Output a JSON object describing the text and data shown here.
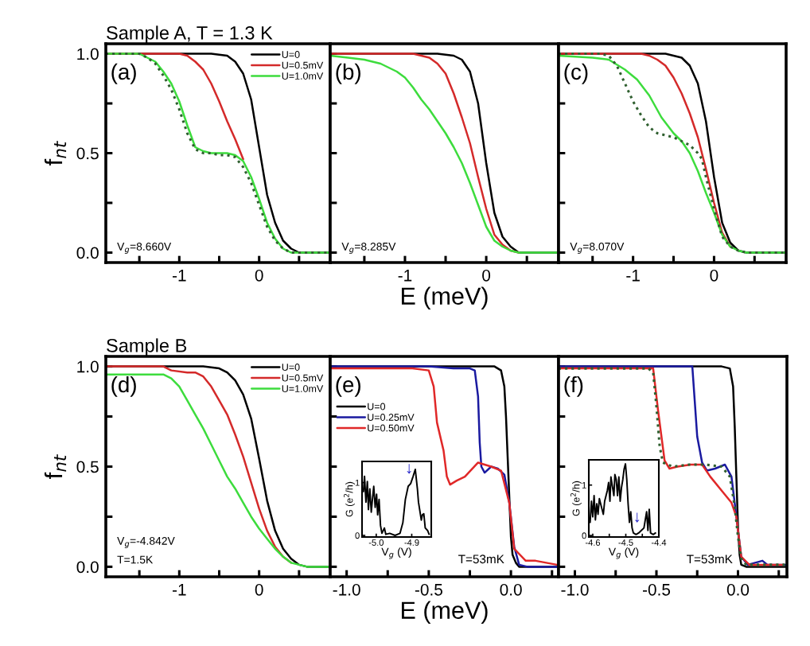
{
  "chart_data": [
    {
      "type": "line",
      "title": "Sample A, T = 1.3 K",
      "ylabel": "f$_{nt}$",
      "xlim": [
        -1.92,
        0.89
      ],
      "xticks": [
        {
          "value": -1.5,
          "label": null
        },
        -1,
        {
          "value": -0.5,
          "label": null
        },
        0,
        {
          "value": 0.5,
          "label": null
        }
      ],
      "ylim": [
        -0.05,
        1.05
      ],
      "yticks": [
        {
          "value": 0,
          "label": "0.0"
        },
        {
          "value": 0.25,
          "label": null
        },
        0.5,
        {
          "value": 0.75,
          "label": null
        },
        {
          "value": 1,
          "label": "1.0"
        }
      ],
      "legend": "top right",
      "annotations": [
        "(a)",
        "V$_{g}$=8.660V"
      ],
      "series": [
        {
          "name": "U=0",
          "color": "#000000",
          "x": [
            -1.92,
            -0.6,
            -0.4,
            -0.3,
            -0.2,
            -0.1,
            0,
            0.1,
            0.2,
            0.3,
            0.4,
            0.5,
            0.89
          ],
          "values": [
            1,
            1,
            0.99,
            0.96,
            0.9,
            0.77,
            0.53,
            0.29,
            0.15,
            0.06,
            0.02,
            0,
            0
          ]
        },
        {
          "name": "U=0.5mV",
          "color": "#d42a2a",
          "x": [
            -1.92,
            -1.0,
            -0.9,
            -0.8,
            -0.7,
            -0.6,
            -0.5,
            -0.4,
            -0.3,
            -0.2
          ],
          "values": [
            1,
            1,
            0.99,
            0.96,
            0.92,
            0.85,
            0.76,
            0.66,
            0.57,
            0.47
          ]
        },
        {
          "name": "U=1.0mV",
          "color": "#3ddc3d",
          "x": [
            -1.92,
            -1.5,
            -1.4,
            -1.3,
            -1.2,
            -1.1,
            -1.0,
            -0.9,
            -0.8,
            -0.7,
            -0.6,
            -0.5,
            -0.4,
            -0.3,
            -0.2,
            -0.1,
            0,
            0.1,
            0.2,
            0.3,
            0.4,
            0.89
          ],
          "values": [
            1,
            1,
            0.98,
            0.96,
            0.91,
            0.85,
            0.76,
            0.64,
            0.53,
            0.51,
            0.5,
            0.5,
            0.5,
            0.49,
            0.46,
            0.38,
            0.27,
            0.15,
            0.07,
            0.02,
            0,
            0
          ]
        },
        {
          "color": "#2f5f2f",
          "line_style": "dotted",
          "x": [
            -1.92,
            -1.5,
            -1.4,
            -1.3,
            -1.2,
            -1.1,
            -1.0,
            -0.9,
            -0.8,
            -0.7,
            -0.6,
            -0.5,
            -0.4,
            -0.3,
            -0.2,
            -0.1,
            0,
            0.1,
            0.2,
            0.3,
            0.4,
            0.89
          ],
          "values": [
            1,
            1,
            0.98,
            0.95,
            0.89,
            0.82,
            0.72,
            0.6,
            0.52,
            0.5,
            0.5,
            0.49,
            0.49,
            0.48,
            0.43,
            0.35,
            0.24,
            0.13,
            0.06,
            0.02,
            0,
            0
          ]
        }
      ]
    },
    {
      "type": "line",
      "xlabel": "E (meV)",
      "xlim": [
        -1.92,
        0.89
      ],
      "xticks": [
        {
          "value": -1.5,
          "label": null
        },
        -1,
        {
          "value": -0.5,
          "label": null
        },
        0,
        {
          "value": 0.5,
          "label": null
        }
      ],
      "ylim": [
        -0.05,
        1.05
      ],
      "yticks": [
        0.0,
        {
          "value": 0.25,
          "label": null
        },
        0.5,
        {
          "value": 0.75,
          "label": null
        },
        1.0
      ],
      "tick_labels": "x",
      "annotations": [
        "(b)",
        "V$_{g}$=8.285V"
      ],
      "series": [
        {
          "color": "#000000",
          "x": [
            -1.92,
            -0.6,
            -0.4,
            -0.3,
            -0.2,
            -0.1,
            0,
            0.1,
            0.2,
            0.3,
            0.4,
            0.89
          ],
          "values": [
            1,
            1,
            0.99,
            0.97,
            0.91,
            0.75,
            0.45,
            0.2,
            0.08,
            0.03,
            0,
            0
          ]
        },
        {
          "color": "#d42a2a",
          "x": [
            -1.92,
            -0.9,
            -0.8,
            -0.7,
            -0.6,
            -0.5,
            -0.4,
            -0.3,
            -0.2,
            -0.1,
            0,
            0.1,
            0.2,
            0.3,
            0.4
          ],
          "values": [
            1,
            1,
            0.99,
            0.98,
            0.95,
            0.9,
            0.8,
            0.68,
            0.55,
            0.38,
            0.22,
            0.09,
            0.04,
            0.01,
            0
          ]
        },
        {
          "color": "#3ddc3d",
          "x": [
            -1.92,
            -1.7,
            -1.5,
            -1.3,
            -1.1,
            -1.0,
            -0.9,
            -0.8,
            -0.7,
            -0.6,
            -0.5,
            -0.4,
            -0.3,
            -0.2,
            -0.1,
            0,
            0.1,
            0.2,
            0.3,
            0.4,
            0.89
          ],
          "values": [
            0.99,
            0.98,
            0.97,
            0.95,
            0.91,
            0.88,
            0.83,
            0.77,
            0.72,
            0.66,
            0.6,
            0.53,
            0.45,
            0.35,
            0.24,
            0.13,
            0.06,
            0.03,
            0.01,
            0,
            0
          ]
        }
      ]
    },
    {
      "type": "line",
      "xlim": [
        -1.92,
        0.89
      ],
      "xticks": [
        {
          "value": -1.5,
          "label": null
        },
        -1,
        {
          "value": -0.5,
          "label": null
        },
        0,
        {
          "value": 0.5,
          "label": null
        }
      ],
      "ylim": [
        -0.05,
        1.05
      ],
      "yticks": [
        0.0,
        {
          "value": 0.25,
          "label": null
        },
        0.5,
        {
          "value": 0.75,
          "label": null
        },
        1.0
      ],
      "tick_labels": "x",
      "annotations": [
        "(c)",
        "V$_{g}$=8.070V"
      ],
      "series": [
        {
          "color": "#000000",
          "x": [
            -1.92,
            -0.6,
            -0.4,
            -0.3,
            -0.2,
            -0.1,
            0,
            0.1,
            0.2,
            0.3,
            0.4,
            0.89
          ],
          "values": [
            1,
            1,
            0.98,
            0.94,
            0.85,
            0.66,
            0.38,
            0.15,
            0.05,
            0.01,
            0,
            0
          ]
        },
        {
          "color": "#d42a2a",
          "x": [
            -1.92,
            -0.9,
            -0.8,
            -0.7,
            -0.6,
            -0.5,
            -0.4,
            -0.3,
            -0.2,
            -0.1,
            0,
            0.1,
            0.2
          ],
          "values": [
            1,
            1,
            0.99,
            0.97,
            0.94,
            0.88,
            0.8,
            0.7,
            0.58,
            0.42,
            0.25,
            0.1,
            0.03
          ]
        },
        {
          "color": "#3ddc3d",
          "x": [
            -1.92,
            -1.5,
            -1.3,
            -1.1,
            -0.95,
            -0.8,
            -0.65,
            -0.5,
            -0.4,
            -0.3,
            -0.2,
            -0.1,
            0,
            0.1,
            0.2,
            0.3,
            0.4,
            0.89
          ],
          "values": [
            0.99,
            0.98,
            0.97,
            0.92,
            0.87,
            0.79,
            0.68,
            0.6,
            0.56,
            0.5,
            0.41,
            0.3,
            0.2,
            0.09,
            0.03,
            0.01,
            0,
            0
          ]
        },
        {
          "color": "#2f5f2f",
          "line_style": "dotted",
          "x": [
            -1.92,
            -1.4,
            -1.3,
            -1.2,
            -1.1,
            -1.0,
            -0.9,
            -0.8,
            -0.7,
            -0.6,
            -0.5,
            -0.4,
            -0.3,
            -0.2,
            -0.15,
            -0.1,
            0,
            0.1,
            0.2,
            0.3,
            0.4,
            0.89
          ],
          "values": [
            1,
            1,
            0.99,
            0.94,
            0.85,
            0.76,
            0.69,
            0.63,
            0.6,
            0.59,
            0.58,
            0.56,
            0.54,
            0.5,
            0.47,
            0.38,
            0.22,
            0.08,
            0.03,
            0.01,
            0,
            0
          ]
        }
      ]
    },
    {
      "type": "line",
      "title": "Sample B",
      "ylabel": "f$_{nt}$",
      "xlim": [
        -1.92,
        0.89
      ],
      "xticks": [
        {
          "value": -1.5,
          "label": null
        },
        -1,
        {
          "value": -0.5,
          "label": null
        },
        0,
        {
          "value": 0.5,
          "label": null
        }
      ],
      "ylim": [
        -0.05,
        1.05
      ],
      "yticks": [
        {
          "value": 0,
          "label": "0.0"
        },
        {
          "value": 0.25,
          "label": null
        },
        0.5,
        {
          "value": 0.75,
          "label": null
        },
        {
          "value": 1,
          "label": "1.0"
        }
      ],
      "legend": "top right",
      "annotations": [
        "(d)",
        "V$_{g}$=-4.842V",
        "T=1.5K"
      ],
      "series": [
        {
          "name": "U=0",
          "color": "#000000",
          "x": [
            -1.92,
            -0.7,
            -0.5,
            -0.4,
            -0.3,
            -0.2,
            -0.1,
            0,
            0.1,
            0.2,
            0.3,
            0.4,
            0.5,
            0.6,
            0.89
          ],
          "values": [
            1,
            1,
            0.99,
            0.97,
            0.93,
            0.86,
            0.74,
            0.54,
            0.33,
            0.18,
            0.09,
            0.04,
            0.01,
            0,
            0
          ]
        },
        {
          "name": "U=0.5mV",
          "color": "#d42a2a",
          "x": [
            -1.92,
            -1.2,
            -1.1,
            -0.9,
            -0.8,
            -0.7,
            -0.6,
            -0.5,
            -0.4,
            -0.3,
            -0.2,
            -0.1,
            0,
            0.1,
            0.2,
            0.3,
            0.4
          ],
          "values": [
            1,
            1,
            0.98,
            0.97,
            0.97,
            0.95,
            0.9,
            0.83,
            0.76,
            0.66,
            0.55,
            0.42,
            0.29,
            0.18,
            0.1,
            0.05,
            0.02
          ]
        },
        {
          "name": "U=1.0mV",
          "color": "#3ddc3d",
          "x": [
            -1.92,
            -1.2,
            -1.1,
            -1.0,
            -0.9,
            -0.8,
            -0.7,
            -0.6,
            -0.5,
            -0.4,
            -0.3,
            -0.2,
            -0.1,
            0,
            0.1,
            0.2,
            0.3,
            0.4,
            0.5,
            0.6,
            0.89
          ],
          "values": [
            0.96,
            0.96,
            0.94,
            0.9,
            0.83,
            0.76,
            0.69,
            0.61,
            0.53,
            0.45,
            0.39,
            0.32,
            0.25,
            0.19,
            0.14,
            0.09,
            0.05,
            0.02,
            0.01,
            0,
            0
          ]
        }
      ]
    },
    {
      "type": "line",
      "xlabel": "E (meV)",
      "xlim": [
        -1.1,
        0.29
      ],
      "xticks": [
        {
          "value": -1,
          "label": "-1.0"
        },
        {
          "value": -0.75,
          "label": null
        },
        -0.5,
        {
          "value": -0.25,
          "label": null
        },
        {
          "value": 0,
          "label": "0.0"
        },
        {
          "value": 0.25,
          "label": null
        }
      ],
      "ylim": [
        -0.05,
        1.05
      ],
      "yticks": [
        0.0,
        {
          "value": 0.25,
          "label": null
        },
        0.5,
        {
          "value": 0.75,
          "label": null
        },
        1.0
      ],
      "tick_labels": "x",
      "legend": "left",
      "annotations": [
        "(e)",
        "T=53mK"
      ],
      "series": [
        {
          "name": "U=0",
          "color": "#000000",
          "x": [
            -1.1,
            -0.1,
            -0.06,
            -0.04,
            -0.03,
            -0.02,
            -0.01,
            0,
            0.01,
            0.03,
            0.05,
            0.29
          ],
          "values": [
            1,
            1,
            0.98,
            0.9,
            0.75,
            0.55,
            0.35,
            0.15,
            0.06,
            0.02,
            0,
            0
          ]
        },
        {
          "name": "U=0.25mV",
          "color": "#1a1aa0",
          "x": [
            -1.1,
            -0.5,
            -0.35,
            -0.25,
            -0.22,
            -0.2,
            -0.19,
            -0.18,
            -0.16,
            -0.12,
            -0.08,
            -0.04,
            -0.01,
            0.02,
            0.05,
            0.1,
            0.29
          ],
          "values": [
            1,
            1,
            0.99,
            0.99,
            0.98,
            0.85,
            0.62,
            0.5,
            0.47,
            0.5,
            0.49,
            0.46,
            0.32,
            0.1,
            0.01,
            0,
            0
          ]
        },
        {
          "name": "U=0.50mV",
          "color": "#e02828",
          "x": [
            -1.1,
            -0.6,
            -0.5,
            -0.47,
            -0.45,
            -0.41,
            -0.39,
            -0.37,
            -0.33,
            -0.28,
            -0.2,
            -0.12,
            -0.06,
            -0.01,
            0.02,
            0.09,
            0.15,
            0.28
          ],
          "values": [
            0.99,
            0.99,
            0.98,
            0.9,
            0.72,
            0.58,
            0.45,
            0.41,
            0.43,
            0.45,
            0.52,
            0.5,
            0.48,
            0.32,
            0.09,
            0.03,
            0.03,
            0.01
          ]
        }
      ]
    },
    {
      "type": "line",
      "xlabel": "V$_{g}$ (V)",
      "ylabel": "G (e$^{2}$/h)",
      "xlim": [
        -5.04,
        -4.845
      ],
      "xticks": [
        {
          "value": -5,
          "label": "-5.0"
        },
        -4.9
      ],
      "ylim": [
        -0.03,
        1.4
      ],
      "yticks": [
        0,
        1
      ],
      "annotations": [
        "↓"
      ],
      "series": [
        {
          "color": "#000000",
          "x": [
            -5.036,
            -5.033,
            -5.029,
            -5.025,
            -5.022,
            -5.018,
            -5.014,
            -5.01,
            -5.007,
            -5.003,
            -4.999,
            -4.996,
            -4.992,
            -4.988,
            -4.984,
            -4.977,
            -4.973,
            -4.962,
            -4.947,
            -4.933,
            -4.925,
            -4.918,
            -4.91,
            -4.903,
            -4.896,
            -4.89,
            -4.884,
            -4.881,
            -4.873,
            -4.87,
            -4.866,
            -4.862,
            -4.855,
            -4.851
          ],
          "values": [
            0.83,
            1.12,
            0.63,
            1.02,
            0.49,
            0.88,
            0.44,
            0.73,
            0.93,
            0.53,
            0.78,
            0.39,
            0.68,
            0.19,
            0.04,
            0.14,
            0.02,
            0.04,
            0.0,
            0.04,
            0.24,
            0.68,
            0.93,
            0.98,
            1.12,
            1.25,
            0.88,
            0.63,
            0.29,
            0.39,
            0.41,
            0.14,
            0.09,
            0.02
          ]
        }
      ]
    },
    {
      "type": "line",
      "xlim": [
        -1.1,
        0.3
      ],
      "xticks": [
        {
          "value": -1,
          "label": "-1.0"
        },
        {
          "value": -0.75,
          "label": null
        },
        -0.5,
        {
          "value": -0.25,
          "label": null
        },
        {
          "value": 0,
          "label": "0.0"
        },
        {
          "value": 0.25,
          "label": null
        }
      ],
      "ylim": [
        -0.05,
        1.05
      ],
      "yticks": [
        0.0,
        {
          "value": 0.25,
          "label": null
        },
        0.5,
        {
          "value": 0.75,
          "label": null
        },
        1.0
      ],
      "tick_labels": "x",
      "annotations": [
        "(f)",
        "T=53mK"
      ],
      "series": [
        {
          "color": "#000000",
          "x": [
            -1.1,
            -0.1,
            -0.05,
            -0.03,
            -0.02,
            -0.01,
            0,
            0.01,
            0.02,
            0.05,
            0.3
          ],
          "values": [
            1,
            1,
            0.99,
            0.9,
            0.7,
            0.45,
            0.2,
            0.06,
            0.01,
            0,
            0
          ]
        },
        {
          "color": "#1a1aa0",
          "x": [
            -1.1,
            -0.28,
            -0.25,
            -0.22,
            -0.19,
            -0.14,
            -0.08,
            -0.04,
            -0.01,
            0.02,
            0.06,
            0.15,
            0.18,
            0.3
          ],
          "values": [
            1,
            1,
            0.65,
            0.52,
            0.48,
            0.49,
            0.51,
            0.45,
            0.25,
            0.05,
            0.01,
            0.03,
            0.01,
            0.01
          ]
        },
        {
          "color": "#e02828",
          "x": [
            -1.1,
            -0.52,
            -0.49,
            -0.45,
            -0.42,
            -0.37,
            -0.29,
            -0.22,
            -0.17,
            -0.09,
            -0.04,
            -0.01,
            0.02,
            0.07,
            0.18,
            0.28
          ],
          "values": [
            0.99,
            0.99,
            0.78,
            0.53,
            0.49,
            0.5,
            0.51,
            0.51,
            0.45,
            0.37,
            0.32,
            0.25,
            0.05,
            0.01,
            0.01,
            0.01
          ]
        },
        {
          "color": "#2f5f2f",
          "line_style": "dotted",
          "x": [
            -1.1,
            -0.55,
            -0.52,
            -0.5,
            -0.48,
            -0.46,
            -0.4,
            -0.3,
            -0.2,
            -0.1,
            -0.05,
            -0.02,
            0,
            0.02,
            0.05,
            0.1,
            0.3
          ],
          "values": [
            0.99,
            0.99,
            0.97,
            0.8,
            0.6,
            0.52,
            0.5,
            0.51,
            0.51,
            0.5,
            0.45,
            0.3,
            0.15,
            0.04,
            0.01,
            0.01,
            0.01
          ]
        }
      ]
    },
    {
      "type": "line",
      "xlabel": "V$_{g}$ (V)",
      "ylabel": "G (e$^{2}$/h)",
      "xlim": [
        -4.612,
        -4.4
      ],
      "xticks": [
        -4.6,
        {
          "value": -4.55,
          "label": null
        },
        -4.5,
        {
          "value": -4.45,
          "label": null
        },
        -4.4
      ],
      "ylim": [
        -0.03,
        1.5
      ],
      "yticks": [
        0,
        1
      ],
      "annotations": [
        "↓"
      ],
      "series": [
        {
          "color": "#000000",
          "x": [
            -4.608,
            -4.604,
            -4.6,
            -4.596,
            -4.592,
            -4.588,
            -4.584,
            -4.58,
            -4.572,
            -4.568,
            -4.564,
            -4.556,
            -4.552,
            -4.548,
            -4.545,
            -4.54,
            -4.536,
            -4.533,
            -4.529,
            -4.525,
            -4.521,
            -4.517,
            -4.513,
            -4.509,
            -4.505,
            -4.501,
            -4.497,
            -4.493,
            -4.489,
            -4.485,
            -4.481,
            -4.477,
            -4.469,
            -4.461,
            -4.453,
            -4.445,
            -4.441,
            -4.437,
            -4.433,
            -4.429,
            -4.425,
            -4.417,
            -4.41
          ],
          "values": [
            0.26,
            0.68,
            0.37,
            0.79,
            0.31,
            0.63,
            0.42,
            0.73,
            0.52,
            0.42,
            0.68,
            0.89,
            1.05,
            0.68,
            1.16,
            0.95,
            0.79,
            1.21,
            1.11,
            0.79,
            1.16,
            0.68,
            0.95,
            1.11,
            1.32,
            1.42,
            1.11,
            0.63,
            0.26,
            0.47,
            0.15,
            0.05,
            0.02,
            0.05,
            0.1,
            0.15,
            0.31,
            0.47,
            0.1,
            0.52,
            0.05,
            0.02,
            0.05
          ]
        }
      ]
    }
  ]
}
